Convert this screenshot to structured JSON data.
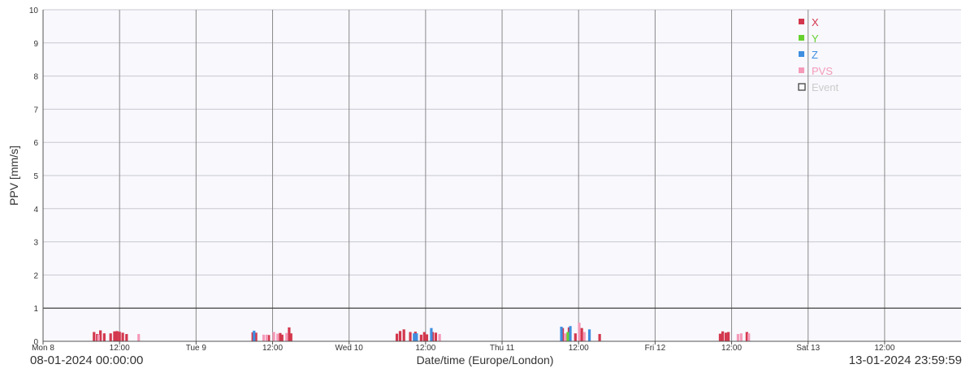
{
  "chart_data": {
    "type": "bar",
    "ylabel": "PPV [mm/s]",
    "xlabel": "Date/time (Europe/London)",
    "ylim": [
      0,
      10
    ],
    "y_ticks": [
      "0",
      "1",
      "2",
      "3",
      "4",
      "5",
      "6",
      "7",
      "8",
      "9",
      "10"
    ],
    "x_range_hours": [
      0,
      143.99
    ],
    "x_ticks": [
      {
        "hour": 0,
        "label": "Mon 8"
      },
      {
        "hour": 12,
        "label": "12:00"
      },
      {
        "hour": 24,
        "label": "Tue 9"
      },
      {
        "hour": 36,
        "label": "12:00"
      },
      {
        "hour": 48,
        "label": "Wed 10"
      },
      {
        "hour": 60,
        "label": "12:00"
      },
      {
        "hour": 72,
        "label": "Thu 11"
      },
      {
        "hour": 84,
        "label": "12:00"
      },
      {
        "hour": 96,
        "label": "Fri 12"
      },
      {
        "hour": 108,
        "label": "12:00"
      },
      {
        "hour": 120,
        "label": "Sat 13"
      },
      {
        "hour": 132,
        "label": "12:00"
      }
    ],
    "threshold_line": 1,
    "grid": true,
    "legend_position": "top-right",
    "legend": [
      {
        "label": "X",
        "color": "#d3374d",
        "kind": "filled"
      },
      {
        "label": "Y",
        "color": "#66d12e",
        "kind": "filled"
      },
      {
        "label": "Z",
        "color": "#3f8ee0",
        "kind": "filled"
      },
      {
        "label": "PVS",
        "color": "#f59ab8",
        "kind": "filled"
      },
      {
        "label": "Event",
        "color": "#444444",
        "kind": "outline"
      }
    ],
    "series": [
      {
        "name": "X",
        "color": "#d3374d",
        "points": [
          [
            8.0,
            0.28
          ],
          [
            8.5,
            0.22
          ],
          [
            9.0,
            0.33
          ],
          [
            9.6,
            0.24
          ],
          [
            10.6,
            0.24
          ],
          [
            11.2,
            0.3
          ],
          [
            11.6,
            0.31
          ],
          [
            12.0,
            0.29
          ],
          [
            12.5,
            0.26
          ],
          [
            13.1,
            0.22
          ],
          [
            32.9,
            0.27
          ],
          [
            33.4,
            0.26
          ],
          [
            35.4,
            0.19
          ],
          [
            37.2,
            0.25
          ],
          [
            37.5,
            0.2
          ],
          [
            38.6,
            0.42
          ],
          [
            38.9,
            0.24
          ],
          [
            55.5,
            0.23
          ],
          [
            56.0,
            0.31
          ],
          [
            56.6,
            0.36
          ],
          [
            57.6,
            0.28
          ],
          [
            58.4,
            0.29
          ],
          [
            59.3,
            0.2
          ],
          [
            59.8,
            0.28
          ],
          [
            60.2,
            0.21
          ],
          [
            61.1,
            0.28
          ],
          [
            61.6,
            0.26
          ],
          [
            81.5,
            0.4
          ],
          [
            82.1,
            0.2
          ],
          [
            82.5,
            0.42
          ],
          [
            83.5,
            0.24
          ],
          [
            84.5,
            0.4
          ],
          [
            87.3,
            0.22
          ],
          [
            106.2,
            0.23
          ],
          [
            106.6,
            0.3
          ],
          [
            107.1,
            0.26
          ],
          [
            107.5,
            0.28
          ],
          [
            110.4,
            0.28
          ]
        ]
      },
      {
        "name": "Y",
        "color": "#66d12e",
        "points": [
          [
            82.3,
            0.28
          ]
        ]
      },
      {
        "name": "Z",
        "color": "#3f8ee0",
        "points": [
          [
            33.1,
            0.32
          ],
          [
            58.2,
            0.24
          ],
          [
            58.6,
            0.24
          ],
          [
            60.9,
            0.4
          ],
          [
            81.3,
            0.44
          ],
          [
            82.7,
            0.46
          ],
          [
            85.7,
            0.36
          ]
        ]
      },
      {
        "name": "PVS",
        "color": "#f59ab8",
        "points": [
          [
            8.7,
            0.2
          ],
          [
            15.0,
            0.22
          ],
          [
            34.6,
            0.2
          ],
          [
            35.1,
            0.2
          ],
          [
            36.2,
            0.28
          ],
          [
            36.8,
            0.23
          ],
          [
            38.2,
            0.25
          ],
          [
            62.2,
            0.22
          ],
          [
            81.9,
            0.24
          ],
          [
            84.1,
            0.56
          ],
          [
            84.9,
            0.28
          ],
          [
            109.0,
            0.22
          ],
          [
            109.5,
            0.24
          ],
          [
            110.7,
            0.24
          ]
        ]
      }
    ],
    "range_start": "08-01-2024 00:00:00",
    "range_end": "13-01-2024 23:59:59"
  }
}
